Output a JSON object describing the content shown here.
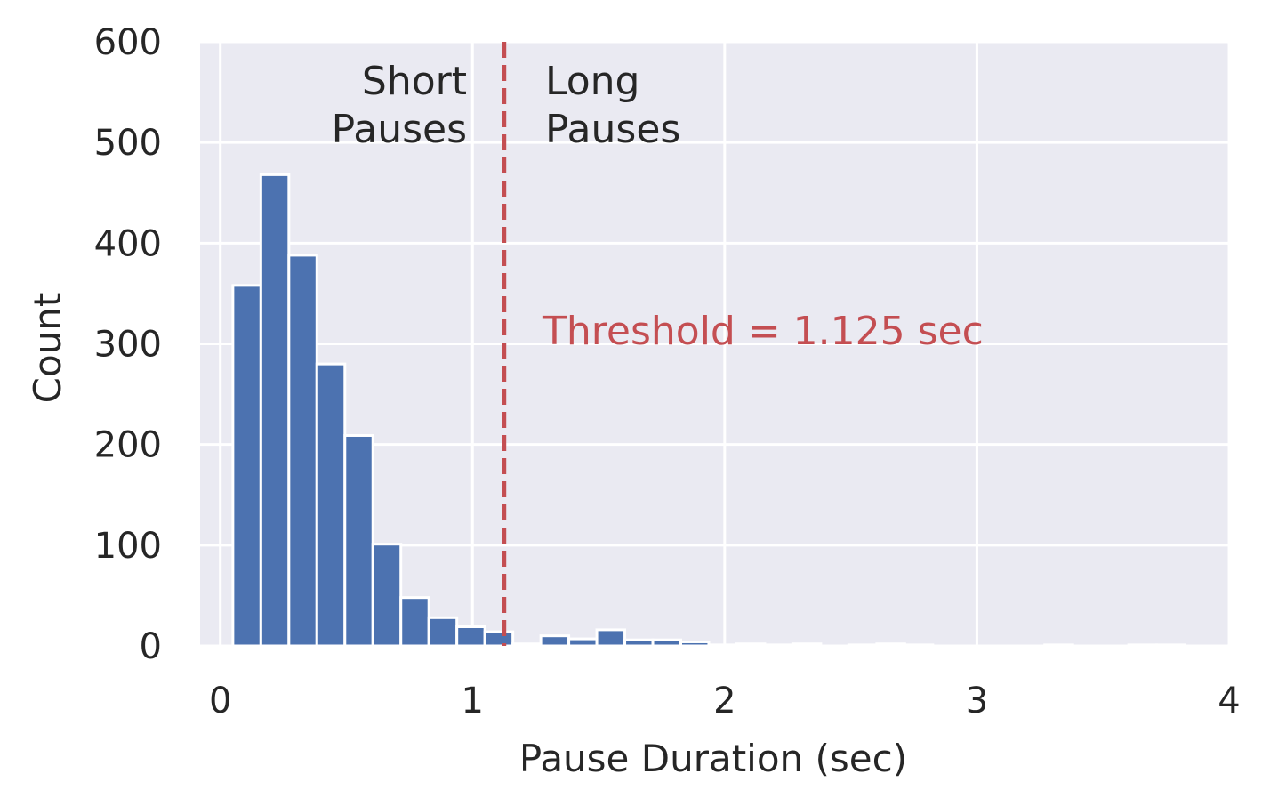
{
  "chart_data": {
    "type": "bar",
    "histogram": true,
    "xlabel": "Pause Duration (sec)",
    "ylabel": "Count",
    "xlim": [
      -0.08,
      4.0
    ],
    "ylim": [
      0,
      600
    ],
    "x_ticks": [
      0,
      1,
      2,
      3,
      4
    ],
    "y_ticks": [
      0,
      100,
      200,
      300,
      400,
      500,
      600
    ],
    "grid": true,
    "bin_width": 0.111,
    "bins": [
      {
        "start": 0.05,
        "count": 358
      },
      {
        "start": 0.161,
        "count": 468
      },
      {
        "start": 0.272,
        "count": 388
      },
      {
        "start": 0.383,
        "count": 280
      },
      {
        "start": 0.494,
        "count": 209
      },
      {
        "start": 0.605,
        "count": 101
      },
      {
        "start": 0.716,
        "count": 48
      },
      {
        "start": 0.827,
        "count": 28
      },
      {
        "start": 0.938,
        "count": 19
      },
      {
        "start": 1.049,
        "count": 14
      },
      {
        "start": 1.16,
        "count": 2
      },
      {
        "start": 1.271,
        "count": 10
      },
      {
        "start": 1.382,
        "count": 7
      },
      {
        "start": 1.493,
        "count": 16
      },
      {
        "start": 1.604,
        "count": 6
      },
      {
        "start": 1.715,
        "count": 6
      },
      {
        "start": 1.826,
        "count": 4
      },
      {
        "start": 1.937,
        "count": 1
      },
      {
        "start": 2.048,
        "count": 2
      },
      {
        "start": 2.159,
        "count": 1
      },
      {
        "start": 2.27,
        "count": 2
      },
      {
        "start": 2.381,
        "count": 0
      },
      {
        "start": 2.492,
        "count": 1
      },
      {
        "start": 2.603,
        "count": 2
      },
      {
        "start": 2.714,
        "count": 1
      },
      {
        "start": 2.825,
        "count": 0
      },
      {
        "start": 2.936,
        "count": 0
      },
      {
        "start": 3.047,
        "count": 0
      },
      {
        "start": 3.158,
        "count": 0
      },
      {
        "start": 3.269,
        "count": 1
      },
      {
        "start": 3.38,
        "count": 0
      },
      {
        "start": 3.491,
        "count": 0
      },
      {
        "start": 3.602,
        "count": 1
      },
      {
        "start": 3.713,
        "count": 1
      },
      {
        "start": 3.824,
        "count": 0
      }
    ],
    "threshold": {
      "x": 1.125,
      "label": "Threshold = 1.125 sec"
    },
    "annotations": {
      "short_line1": "Short",
      "short_line2": "Pauses",
      "long_line1": "Long",
      "long_line2": "Pauses"
    },
    "colors": {
      "bar": "#4c72b0",
      "threshold": "#c44e52",
      "plot_background": "#eaeaf2",
      "grid": "#ffffff",
      "text": "#262626"
    }
  }
}
